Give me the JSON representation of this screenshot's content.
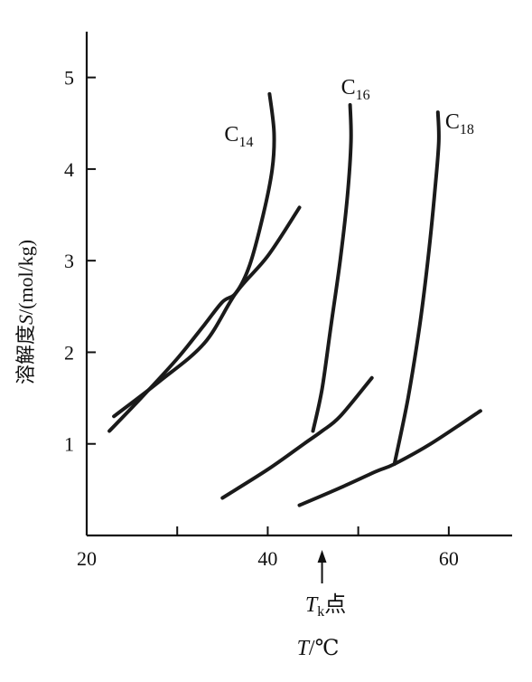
{
  "chart_data": {
    "type": "line",
    "title": "",
    "xlabel_var": "T",
    "xlabel_unit": "/℃",
    "ylabel_prefix": "溶解度",
    "ylabel_var": "S",
    "ylabel_unit": "/(mol/kg)",
    "xlim": [
      20,
      67
    ],
    "ylim": [
      0,
      5.5
    ],
    "x_ticks": [
      20,
      30,
      40,
      50,
      60
    ],
    "x_tick_labels": [
      "20",
      "",
      "40",
      "",
      "60"
    ],
    "y_ticks": [
      1,
      2,
      3,
      4,
      5
    ],
    "y_tick_labels": [
      "1",
      "2",
      "3",
      "4",
      "5"
    ],
    "annotation": {
      "text_var": "T",
      "text_sub": "k",
      "text_suffix": "点",
      "x": 46
    },
    "series": [
      {
        "name": "C",
        "name_sub": "14",
        "krafft_x": 36.5,
        "solubility_curve": [
          [
            22.5,
            1.14
          ],
          [
            26,
            1.5
          ],
          [
            30,
            1.93
          ],
          [
            33,
            2.3
          ],
          [
            35,
            2.55
          ],
          [
            36.5,
            2.65
          ],
          [
            38,
            2.95
          ],
          [
            39.5,
            3.5
          ],
          [
            40.5,
            4.0
          ],
          [
            40.7,
            4.4
          ],
          [
            40.2,
            4.82
          ]
        ],
        "monomer_line": [
          [
            23,
            1.3
          ],
          [
            28,
            1.68
          ],
          [
            33,
            2.1
          ],
          [
            36.5,
            2.65
          ],
          [
            40,
            3.05
          ],
          [
            43.5,
            3.58
          ]
        ]
      },
      {
        "name": "C",
        "name_sub": "16",
        "krafft_x": 46,
        "solubility_curve": [
          [
            45,
            1.14
          ],
          [
            46,
            1.6
          ],
          [
            47,
            2.3
          ],
          [
            48,
            3.0
          ],
          [
            48.8,
            3.7
          ],
          [
            49.2,
            4.3
          ],
          [
            49.1,
            4.7
          ]
        ],
        "monomer_line": [
          [
            35,
            0.41
          ],
          [
            40,
            0.72
          ],
          [
            44,
            1.0
          ],
          [
            46,
            1.14
          ],
          [
            48,
            1.3
          ],
          [
            51.5,
            1.72
          ]
        ]
      },
      {
        "name": "C",
        "name_sub": "18",
        "krafft_x": 54,
        "solubility_curve": [
          [
            54,
            0.78
          ],
          [
            55.5,
            1.5
          ],
          [
            56.8,
            2.3
          ],
          [
            57.8,
            3.1
          ],
          [
            58.5,
            3.8
          ],
          [
            58.9,
            4.3
          ],
          [
            58.8,
            4.62
          ]
        ],
        "monomer_line": [
          [
            43.5,
            0.33
          ],
          [
            48,
            0.52
          ],
          [
            52,
            0.7
          ],
          [
            54,
            0.78
          ],
          [
            58,
            1.0
          ],
          [
            63.5,
            1.36
          ]
        ]
      }
    ]
  }
}
